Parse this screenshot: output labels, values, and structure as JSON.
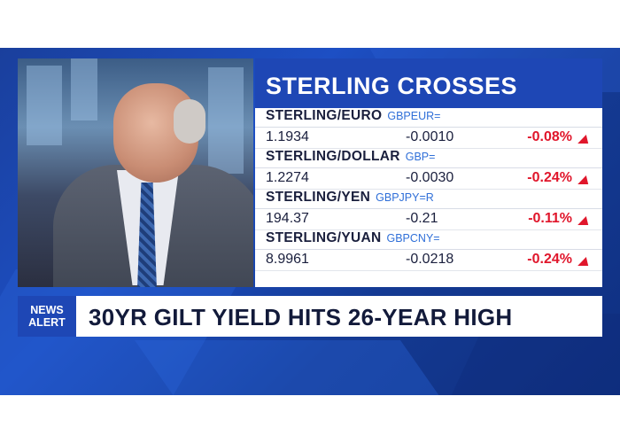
{
  "panel": {
    "title": "STERLING CROSSES",
    "rows": [
      {
        "pair": "STERLING/EURO",
        "ric": "GBPEUR=",
        "price": "1.1934",
        "change": "-0.0010",
        "pct": "-0.08%"
      },
      {
        "pair": "STERLING/DOLLAR",
        "ric": "GBP=",
        "price": "1.2274",
        "change": "-0.0030",
        "pct": "-0.24%"
      },
      {
        "pair": "STERLING/YEN",
        "ric": "GBPJPY=R",
        "price": "194.37",
        "change": "-0.21",
        "pct": "-0.11%"
      },
      {
        "pair": "STERLING/YUAN",
        "ric": "GBPCNY=",
        "price": "8.9961",
        "change": "-0.0218",
        "pct": "-0.24%"
      }
    ]
  },
  "alert": {
    "tag_line1": "NEWS",
    "tag_line2": "ALERT",
    "headline": "30YR GILT YIELD HITS 26-YEAR HIGH"
  },
  "colors": {
    "brand_blue": "#1e47b5",
    "negative": "#e0162b",
    "ric_blue": "#2f6fd8"
  },
  "icons": {
    "down_indicator": "red-triangle-icon"
  }
}
